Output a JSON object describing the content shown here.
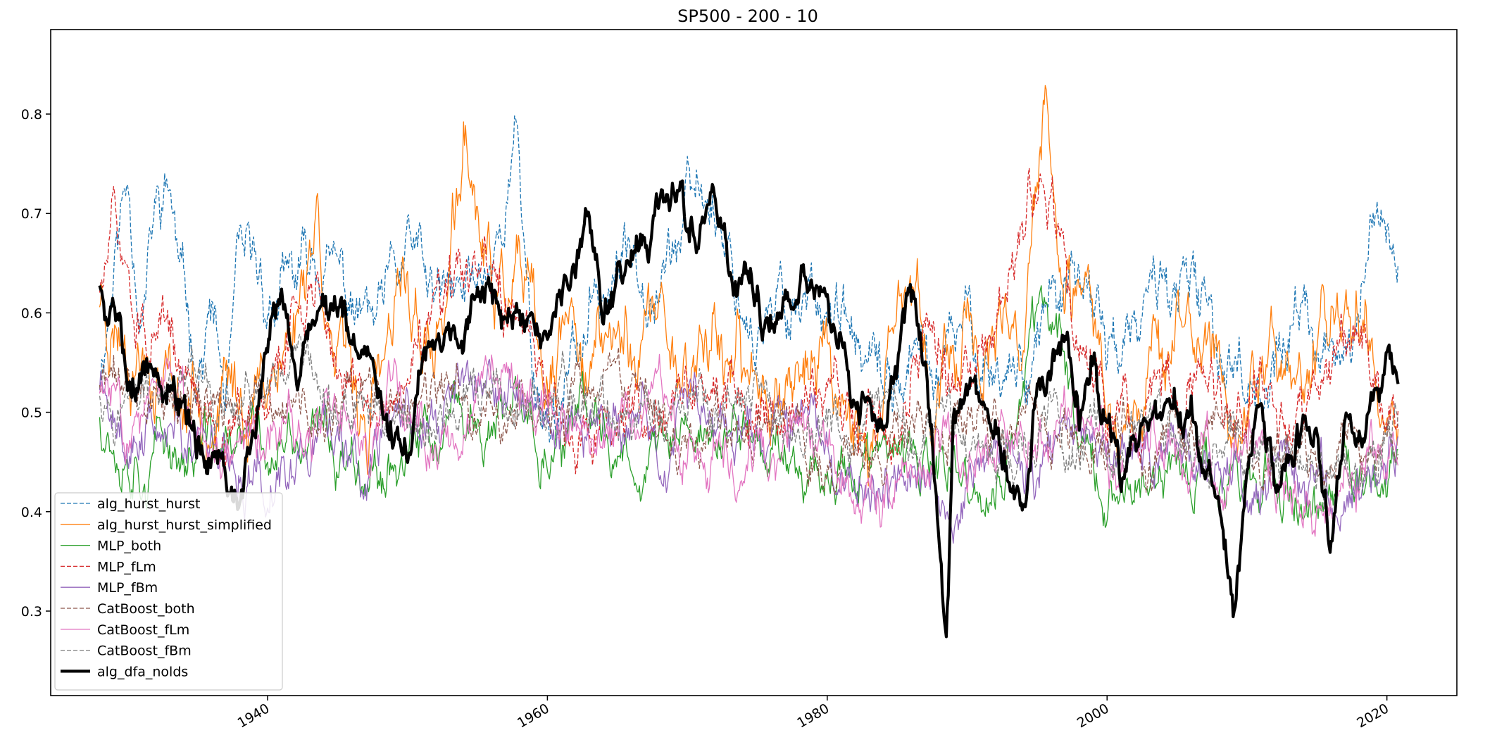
{
  "chart_data": {
    "type": "line",
    "title": "SP500 - 200 - 10",
    "xlabel": "",
    "ylabel": "",
    "xlim": [
      1924.5,
      2025.0
    ],
    "ylim": [
      0.215,
      0.885
    ],
    "x_ticks": [
      1940,
      1960,
      1980,
      2000,
      2020
    ],
    "x_tick_labels": [
      "1940",
      "1960",
      "1980",
      "2000",
      "2020"
    ],
    "y_ticks": [
      0.3,
      0.4,
      0.5,
      0.6,
      0.7,
      0.8
    ],
    "y_tick_labels": [
      "0.3",
      "0.4",
      "0.5",
      "0.6",
      "0.7",
      "0.8"
    ],
    "grid": false,
    "legend_position": "lower-left",
    "x_start": 1928.0,
    "x_end": 2020.8,
    "series": [
      {
        "name": "alg_hurst_hurst",
        "color": "#1f77b4",
        "dash": "dashed",
        "width": 1.3,
        "anchors": [
          [
            1928,
            0.54
          ],
          [
            1929,
            0.66
          ],
          [
            1930,
            0.74
          ],
          [
            1931,
            0.62
          ],
          [
            1932,
            0.7
          ],
          [
            1933,
            0.72
          ],
          [
            1934,
            0.6
          ],
          [
            1935,
            0.55
          ],
          [
            1936,
            0.6
          ],
          [
            1937,
            0.5
          ],
          [
            1938,
            0.62
          ],
          [
            1940,
            0.6
          ],
          [
            1942,
            0.62
          ],
          [
            1944,
            0.65
          ],
          [
            1946,
            0.6
          ],
          [
            1948,
            0.58
          ],
          [
            1950,
            0.65
          ],
          [
            1952,
            0.6
          ],
          [
            1954,
            0.6
          ],
          [
            1956,
            0.66
          ],
          [
            1957.8,
            0.78
          ],
          [
            1959,
            0.55
          ],
          [
            1960,
            0.5
          ],
          [
            1962,
            0.55
          ],
          [
            1964,
            0.62
          ],
          [
            1966,
            0.65
          ],
          [
            1968,
            0.68
          ],
          [
            1970,
            0.7
          ],
          [
            1972,
            0.72
          ],
          [
            1974,
            0.62
          ],
          [
            1976,
            0.58
          ],
          [
            1978,
            0.62
          ],
          [
            1980,
            0.63
          ],
          [
            1982,
            0.55
          ],
          [
            1984,
            0.5
          ],
          [
            1986,
            0.55
          ],
          [
            1988,
            0.52
          ],
          [
            1990,
            0.58
          ],
          [
            1992,
            0.55
          ],
          [
            1994,
            0.56
          ],
          [
            1996,
            0.62
          ],
          [
            1998,
            0.6
          ],
          [
            2000,
            0.58
          ],
          [
            2002,
            0.56
          ],
          [
            2004,
            0.64
          ],
          [
            2006,
            0.6
          ],
          [
            2008,
            0.56
          ],
          [
            2010,
            0.55
          ],
          [
            2012,
            0.56
          ],
          [
            2014,
            0.6
          ],
          [
            2016,
            0.55
          ],
          [
            2018,
            0.58
          ],
          [
            2019,
            0.7
          ],
          [
            2020.8,
            0.67
          ]
        ],
        "noise": 0.07,
        "seed": 11
      },
      {
        "name": "alg_hurst_hurst_simplified",
        "color": "#ff7f0e",
        "dash": "solid",
        "width": 1.3,
        "anchors": [
          [
            1928,
            0.62
          ],
          [
            1930,
            0.6
          ],
          [
            1932,
            0.58
          ],
          [
            1934,
            0.52
          ],
          [
            1936,
            0.55
          ],
          [
            1938,
            0.5
          ],
          [
            1940,
            0.55
          ],
          [
            1942,
            0.6
          ],
          [
            1943.5,
            0.72
          ],
          [
            1945,
            0.55
          ],
          [
            1947,
            0.48
          ],
          [
            1950,
            0.6
          ],
          [
            1952,
            0.56
          ],
          [
            1954.2,
            0.76
          ],
          [
            1956,
            0.6
          ],
          [
            1958,
            0.62
          ],
          [
            1960,
            0.48
          ],
          [
            1962,
            0.58
          ],
          [
            1964,
            0.55
          ],
          [
            1966,
            0.58
          ],
          [
            1968,
            0.6
          ],
          [
            1970,
            0.55
          ],
          [
            1972,
            0.6
          ],
          [
            1974,
            0.5
          ],
          [
            1976,
            0.55
          ],
          [
            1978,
            0.56
          ],
          [
            1980,
            0.55
          ],
          [
            1982,
            0.5
          ],
          [
            1984,
            0.48
          ],
          [
            1986,
            0.6
          ],
          [
            1988,
            0.5
          ],
          [
            1990,
            0.6
          ],
          [
            1992,
            0.55
          ],
          [
            1994,
            0.52
          ],
          [
            1995.6,
            0.8
          ],
          [
            1997,
            0.58
          ],
          [
            1999,
            0.55
          ],
          [
            2001,
            0.5
          ],
          [
            2003,
            0.6
          ],
          [
            2005,
            0.58
          ],
          [
            2007,
            0.55
          ],
          [
            2009,
            0.5
          ],
          [
            2011,
            0.56
          ],
          [
            2013,
            0.55
          ],
          [
            2015,
            0.55
          ],
          [
            2017,
            0.6
          ],
          [
            2018.5,
            0.66
          ],
          [
            2020,
            0.5
          ],
          [
            2020.8,
            0.5
          ]
        ],
        "noise": 0.085,
        "seed": 23
      },
      {
        "name": "MLP_both",
        "color": "#2ca02c",
        "dash": "solid",
        "width": 1.3,
        "anchors": [
          [
            1928,
            0.5
          ],
          [
            1935,
            0.46
          ],
          [
            1945,
            0.46
          ],
          [
            1955,
            0.48
          ],
          [
            1965,
            0.47
          ],
          [
            1975,
            0.47
          ],
          [
            1985,
            0.44
          ],
          [
            1992,
            0.4
          ],
          [
            1995.6,
            0.62
          ],
          [
            2000,
            0.42
          ],
          [
            2010,
            0.44
          ],
          [
            2015,
            0.4
          ],
          [
            2020.8,
            0.45
          ]
        ],
        "noise": 0.06,
        "seed": 37
      },
      {
        "name": "MLP_fLm",
        "color": "#d62728",
        "dash": "dashed",
        "width": 1.3,
        "anchors": [
          [
            1928,
            0.62
          ],
          [
            1929,
            0.68
          ],
          [
            1931,
            0.58
          ],
          [
            1935,
            0.5
          ],
          [
            1940,
            0.5
          ],
          [
            1943.5,
            0.65
          ],
          [
            1946,
            0.5
          ],
          [
            1950,
            0.52
          ],
          [
            1954,
            0.62
          ],
          [
            1958,
            0.6
          ],
          [
            1960,
            0.5
          ],
          [
            1965,
            0.5
          ],
          [
            1970,
            0.55
          ],
          [
            1975,
            0.5
          ],
          [
            1980,
            0.52
          ],
          [
            1985,
            0.48
          ],
          [
            1987,
            0.6
          ],
          [
            1990,
            0.5
          ],
          [
            1995.6,
            0.72
          ],
          [
            1998,
            0.55
          ],
          [
            2002,
            0.48
          ],
          [
            2006,
            0.52
          ],
          [
            2010,
            0.5
          ],
          [
            2014,
            0.5
          ],
          [
            2018,
            0.55
          ],
          [
            2020.8,
            0.48
          ]
        ],
        "noise": 0.065,
        "seed": 51
      },
      {
        "name": "MLP_fBm",
        "color": "#9467bd",
        "dash": "solid",
        "width": 1.3,
        "anchors": [
          [
            1928,
            0.52
          ],
          [
            1935,
            0.48
          ],
          [
            1945,
            0.48
          ],
          [
            1955,
            0.5
          ],
          [
            1965,
            0.48
          ],
          [
            1975,
            0.48
          ],
          [
            1985,
            0.44
          ],
          [
            1995,
            0.46
          ],
          [
            2005,
            0.46
          ],
          [
            2015,
            0.42
          ],
          [
            2020.8,
            0.47
          ]
        ],
        "noise": 0.06,
        "seed": 63
      },
      {
        "name": "CatBoost_both",
        "color": "#8c564b",
        "dash": "dashed",
        "width": 1.3,
        "anchors": [
          [
            1928,
            0.53
          ],
          [
            1935,
            0.5
          ],
          [
            1945,
            0.49
          ],
          [
            1955,
            0.5
          ],
          [
            1965,
            0.5
          ],
          [
            1975,
            0.49
          ],
          [
            1985,
            0.46
          ],
          [
            1995,
            0.48
          ],
          [
            2005,
            0.47
          ],
          [
            2015,
            0.44
          ],
          [
            2020.8,
            0.48
          ]
        ],
        "noise": 0.055,
        "seed": 71
      },
      {
        "name": "CatBoost_fLm",
        "color": "#e377c2",
        "dash": "solid",
        "width": 1.3,
        "anchors": [
          [
            1928,
            0.52
          ],
          [
            1935,
            0.49
          ],
          [
            1945,
            0.48
          ],
          [
            1955,
            0.49
          ],
          [
            1965,
            0.49
          ],
          [
            1975,
            0.48
          ],
          [
            1985,
            0.45
          ],
          [
            1995,
            0.48
          ],
          [
            2005,
            0.46
          ],
          [
            2015,
            0.43
          ],
          [
            2020.8,
            0.47
          ]
        ],
        "noise": 0.06,
        "seed": 83
      },
      {
        "name": "CatBoost_fBm",
        "color": "#7f7f7f",
        "dash": "dashed",
        "width": 1.3,
        "anchors": [
          [
            1928,
            0.53
          ],
          [
            1935,
            0.5
          ],
          [
            1945,
            0.49
          ],
          [
            1955,
            0.5
          ],
          [
            1965,
            0.5
          ],
          [
            1975,
            0.49
          ],
          [
            1985,
            0.46
          ],
          [
            1995,
            0.48
          ],
          [
            2005,
            0.47
          ],
          [
            2015,
            0.44
          ],
          [
            2020.8,
            0.48
          ]
        ],
        "noise": 0.055,
        "seed": 97
      },
      {
        "name": "alg_dfa_nolds",
        "color": "#000000",
        "dash": "solid",
        "width": 4.2,
        "anchors": [
          [
            1928,
            0.63
          ],
          [
            1929,
            0.6
          ],
          [
            1930,
            0.55
          ],
          [
            1932,
            0.56
          ],
          [
            1934,
            0.52
          ],
          [
            1935,
            0.46
          ],
          [
            1937,
            0.45
          ],
          [
            1938,
            0.43
          ],
          [
            1939,
            0.5
          ],
          [
            1940,
            0.54
          ],
          [
            1941,
            0.62
          ],
          [
            1942,
            0.55
          ],
          [
            1944,
            0.6
          ],
          [
            1946,
            0.55
          ],
          [
            1948,
            0.5
          ],
          [
            1950,
            0.46
          ],
          [
            1951,
            0.55
          ],
          [
            1952,
            0.58
          ],
          [
            1954,
            0.6
          ],
          [
            1955,
            0.64
          ],
          [
            1957,
            0.6
          ],
          [
            1959,
            0.55
          ],
          [
            1960,
            0.57
          ],
          [
            1962,
            0.65
          ],
          [
            1963,
            0.7
          ],
          [
            1964,
            0.62
          ],
          [
            1966,
            0.66
          ],
          [
            1968,
            0.7
          ],
          [
            1969.5,
            0.72
          ],
          [
            1970,
            0.68
          ],
          [
            1972,
            0.7
          ],
          [
            1973,
            0.65
          ],
          [
            1975,
            0.6
          ],
          [
            1977,
            0.6
          ],
          [
            1979,
            0.64
          ],
          [
            1980,
            0.6
          ],
          [
            1982,
            0.5
          ],
          [
            1984,
            0.48
          ],
          [
            1985,
            0.55
          ],
          [
            1986,
            0.6
          ],
          [
            1987,
            0.55
          ],
          [
            1988,
            0.38
          ],
          [
            1988.5,
            0.28
          ],
          [
            1989,
            0.5
          ],
          [
            1990,
            0.52
          ],
          [
            1992,
            0.5
          ],
          [
            1993,
            0.42
          ],
          [
            1994,
            0.38
          ],
          [
            1995,
            0.5
          ],
          [
            1996,
            0.53
          ],
          [
            1997,
            0.57
          ],
          [
            1998,
            0.5
          ],
          [
            1999,
            0.55
          ],
          [
            2000,
            0.5
          ],
          [
            2001,
            0.45
          ],
          [
            2003,
            0.47
          ],
          [
            2005,
            0.5
          ],
          [
            2006,
            0.52
          ],
          [
            2007,
            0.44
          ],
          [
            2008,
            0.4
          ],
          [
            2009,
            0.3
          ],
          [
            2010,
            0.42
          ],
          [
            2011,
            0.5
          ],
          [
            2012,
            0.42
          ],
          [
            2013,
            0.46
          ],
          [
            2015,
            0.47
          ],
          [
            2016,
            0.35
          ],
          [
            2017,
            0.5
          ],
          [
            2018,
            0.52
          ],
          [
            2019,
            0.55
          ],
          [
            2020.8,
            0.54
          ]
        ],
        "noise": 0.045,
        "seed": 5
      }
    ]
  }
}
